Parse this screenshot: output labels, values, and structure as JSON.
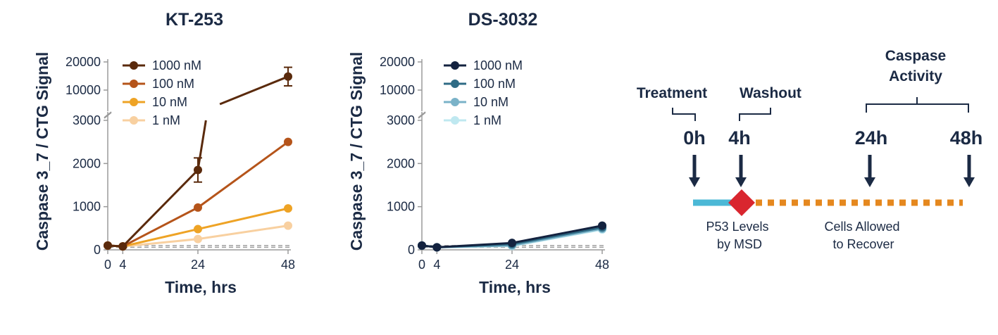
{
  "chart_data": [
    {
      "type": "line",
      "title": "KT-253",
      "xlabel": "Time, hrs",
      "ylabel": "Caspase 3_7 / CTG Signal",
      "x": [
        0,
        4,
        24,
        48
      ],
      "x_ticks": [
        "0",
        "4",
        "24",
        "48"
      ],
      "y_ticks_lower": [
        "0",
        "1000",
        "2000",
        "3000"
      ],
      "y_ticks_upper": [
        "10000",
        "20000"
      ],
      "ylim_lower": [
        0,
        3000
      ],
      "ylim_upper": [
        5000,
        20000
      ],
      "axis_break": true,
      "baseline_dashed": [
        60,
        100
      ],
      "legend_position": "top-left",
      "series": [
        {
          "name": "1000 nM",
          "color": "#5a2a0c",
          "values": [
            100,
            80,
            1850,
            14800
          ],
          "error": [
            0,
            0,
            280,
            3300
          ]
        },
        {
          "name": "100 nM",
          "color": "#b5541a",
          "values": [
            100,
            80,
            980,
            2500
          ],
          "error": [
            0,
            0,
            0,
            0
          ]
        },
        {
          "name": "10 nM",
          "color": "#eea325",
          "values": [
            100,
            80,
            480,
            960
          ],
          "error": [
            0,
            0,
            0,
            0
          ]
        },
        {
          "name": "1 nM",
          "color": "#f8d0a0",
          "values": [
            100,
            80,
            250,
            560
          ],
          "error": [
            0,
            0,
            0,
            0
          ]
        }
      ]
    },
    {
      "type": "line",
      "title": "DS-3032",
      "xlabel": "Time, hrs",
      "ylabel": "Caspase 3_7 / CTG Signal",
      "x": [
        0,
        4,
        24,
        48
      ],
      "x_ticks": [
        "0",
        "4",
        "24",
        "48"
      ],
      "y_ticks_lower": [
        "0",
        "1000",
        "2000",
        "3000"
      ],
      "y_ticks_upper": [
        "10000",
        "20000"
      ],
      "ylim_lower": [
        0,
        3000
      ],
      "ylim_upper": [
        5000,
        20000
      ],
      "axis_break": true,
      "baseline_dashed": [
        60,
        100
      ],
      "legend_position": "top-left",
      "series": [
        {
          "name": "1000 nM",
          "color": "#13223f",
          "values": [
            100,
            60,
            160,
            560
          ],
          "error": [
            0,
            0,
            0,
            0
          ]
        },
        {
          "name": "100 nM",
          "color": "#2f6b85",
          "values": [
            100,
            60,
            130,
            520
          ],
          "error": [
            0,
            0,
            0,
            0
          ]
        },
        {
          "name": "10 nM",
          "color": "#7ab2c8",
          "values": [
            100,
            60,
            100,
            490
          ],
          "error": [
            0,
            0,
            0,
            0
          ]
        },
        {
          "name": "1 nM",
          "color": "#bfe8f0",
          "values": [
            100,
            60,
            90,
            470
          ],
          "error": [
            0,
            0,
            0,
            0
          ]
        }
      ]
    }
  ],
  "timeline": {
    "brackets": {
      "treatment": "Treatment",
      "washout": "Washout",
      "caspase_line1": "Caspase",
      "caspase_line2": "Activity"
    },
    "times": [
      "0h",
      "4h",
      "24h",
      "48h"
    ],
    "notes": {
      "p53_line1": "P53 Levels",
      "p53_line2": "by MSD",
      "recover_line1": "Cells Allowed",
      "recover_line2": "to Recover"
    },
    "colors": {
      "treatment_bar": "#4bb8d6",
      "washout_marker": "#d9262f",
      "recovery_dots": "#e5881f",
      "arrows": "#1b2a44"
    }
  }
}
